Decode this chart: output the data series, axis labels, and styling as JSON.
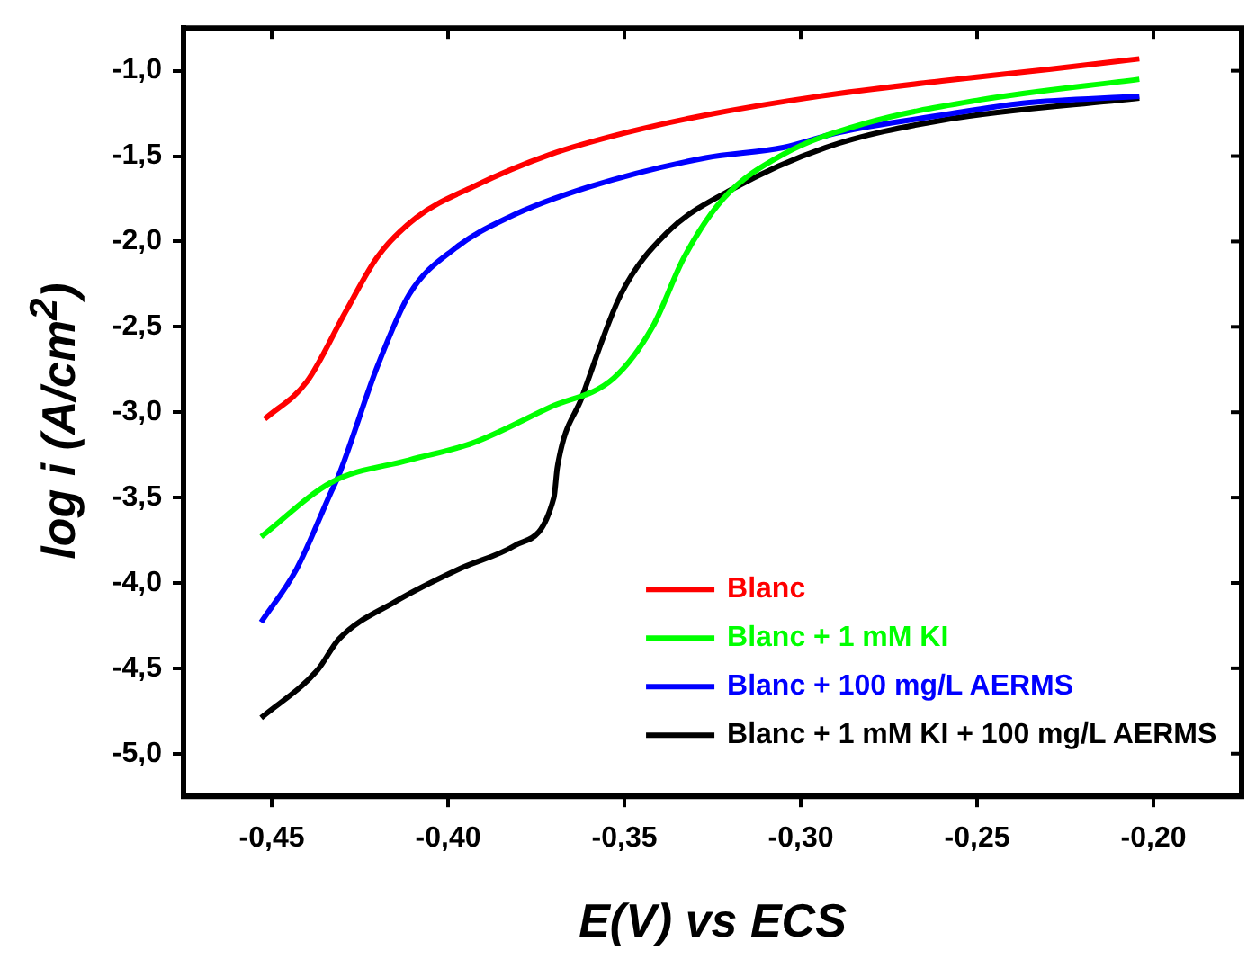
{
  "chart_data": {
    "type": "line",
    "xlabel": "E(V) vs ECS",
    "ylabel": "log i (A/cm$^{2}$)",
    "xlim": [
      -0.475,
      -0.175
    ],
    "xticks": [
      {
        "value": -0.45,
        "label": "-0,45"
      },
      {
        "value": -0.4,
        "label": "-0,40"
      },
      {
        "value": -0.35,
        "label": "-0,35"
      },
      {
        "value": -0.3,
        "label": "-0,30"
      },
      {
        "value": -0.25,
        "label": "-0,25"
      },
      {
        "value": -0.2,
        "label": "-0,20"
      }
    ],
    "ylim": [
      -5.25,
      -0.75
    ],
    "yticks": [
      {
        "value": -5,
        "label": "-5,0"
      },
      {
        "value": -4.5,
        "label": "-4,5"
      },
      {
        "value": -4,
        "label": "-4,0"
      },
      {
        "value": -3.5,
        "label": "-3,5"
      },
      {
        "value": -3,
        "label": "-3,0"
      },
      {
        "value": -2.5,
        "label": "-2,5"
      },
      {
        "value": -2,
        "label": "-2,0"
      },
      {
        "value": -1.5,
        "label": "-1,5"
      },
      {
        "value": -1,
        "label": "-1,0"
      }
    ],
    "grid": false,
    "legend": "bottom right",
    "marker": "none",
    "line_style": "solid",
    "series": [
      {
        "name": "Blanc",
        "color": "#ff0000",
        "x": [
          -0.452,
          -0.44,
          -0.429,
          -0.42,
          -0.409,
          -0.393,
          -0.371,
          -0.349,
          -0.327,
          -0.295,
          -0.26,
          -0.229,
          -0.204
        ],
        "values": [
          -3.04,
          -2.82,
          -2.41,
          -2.09,
          -1.86,
          -1.68,
          -1.49,
          -1.36,
          -1.26,
          -1.15,
          -1.06,
          -0.99,
          -0.93
        ]
      },
      {
        "name": "Blanc + 1 mM KI",
        "color": "#00ff00",
        "x": [
          -0.453,
          -0.433,
          -0.411,
          -0.393,
          -0.371,
          -0.353,
          -0.342,
          -0.333,
          -0.322,
          -0.305,
          -0.282,
          -0.249,
          -0.204
        ],
        "values": [
          -3.73,
          -3.41,
          -3.28,
          -3.18,
          -2.97,
          -2.8,
          -2.5,
          -2.09,
          -1.75,
          -1.49,
          -1.31,
          -1.17,
          -1.05
        ]
      },
      {
        "name": "Blanc + 100 mg/L AERMS",
        "color": "#0000ff",
        "x": [
          -0.453,
          -0.443,
          -0.433,
          -0.431,
          -0.42,
          -0.411,
          -0.398,
          -0.383,
          -0.36,
          -0.327,
          -0.305,
          -0.289,
          -0.26,
          -0.237,
          -0.204
        ],
        "values": [
          -4.23,
          -3.92,
          -3.46,
          -3.37,
          -2.73,
          -2.31,
          -2.04,
          -1.86,
          -1.68,
          -1.51,
          -1.45,
          -1.36,
          -1.26,
          -1.19,
          -1.15
        ]
      },
      {
        "name": "Blanc + 1 mM KI + 100 mg/L AERMS",
        "color": "#000000",
        "x": [
          -0.453,
          -0.437,
          -0.431,
          -0.415,
          -0.397,
          -0.381,
          -0.37,
          -0.369,
          -0.362,
          -0.351,
          -0.338,
          -0.32,
          -0.293,
          -0.26,
          -0.204
        ],
        "values": [
          -4.79,
          -4.51,
          -4.33,
          -4.11,
          -3.92,
          -3.78,
          -3.5,
          -3.32,
          -2.91,
          -2.31,
          -1.95,
          -1.7,
          -1.45,
          -1.29,
          -1.16
        ]
      }
    ]
  }
}
